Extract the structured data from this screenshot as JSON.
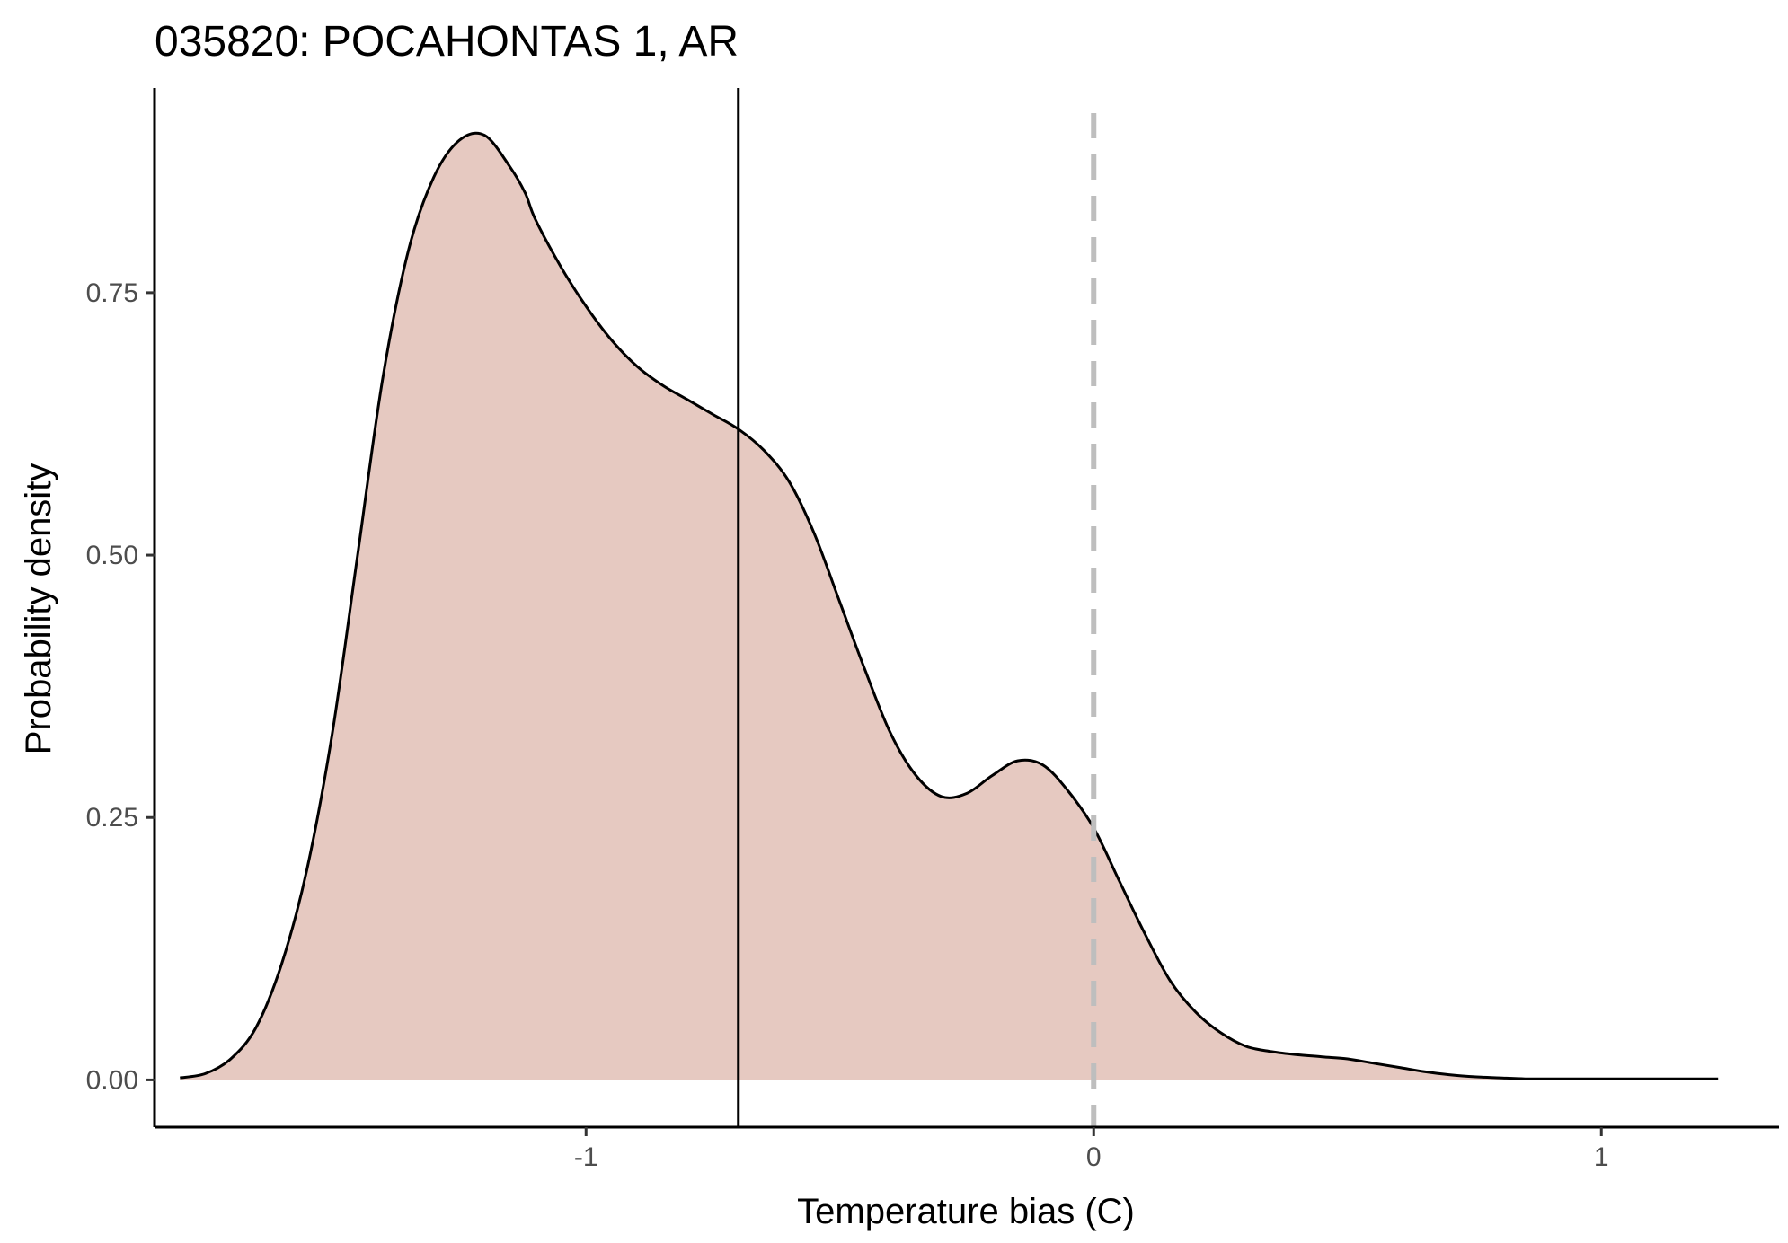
{
  "chart_data": {
    "type": "area",
    "title": "035820: POCAHONTAS 1, AR",
    "xlabel": "Temperature bias (C)",
    "ylabel": "Probability density",
    "xlim": [
      -1.85,
      1.35
    ],
    "ylim": [
      -0.045,
      0.945
    ],
    "x_ticks": [
      {
        "value": -1,
        "label": "-1"
      },
      {
        "value": 0,
        "label": "0"
      },
      {
        "value": 1,
        "label": "1"
      }
    ],
    "y_ticks": [
      {
        "value": 0.0,
        "label": "0.00"
      },
      {
        "value": 0.25,
        "label": "0.25"
      },
      {
        "value": 0.5,
        "label": "0.50"
      },
      {
        "value": 0.75,
        "label": "0.75"
      }
    ],
    "grid": false,
    "fill_color": "#e6c9c1",
    "line_color": "#000000",
    "series": [
      {
        "x": [
          -1.8,
          -1.75,
          -1.7,
          -1.65,
          -1.6,
          -1.55,
          -1.5,
          -1.45,
          -1.4,
          -1.35,
          -1.3,
          -1.25,
          -1.2,
          -1.15,
          -1.12,
          -1.1,
          -1.05,
          -1.0,
          -0.95,
          -0.9,
          -0.85,
          -0.8,
          -0.75,
          -0.7,
          -0.65,
          -0.6,
          -0.55,
          -0.5,
          -0.45,
          -0.4,
          -0.35,
          -0.3,
          -0.25,
          -0.2,
          -0.15,
          -0.1,
          -0.05,
          0.0,
          0.05,
          0.1,
          0.15,
          0.2,
          0.25,
          0.3,
          0.35,
          0.4,
          0.45,
          0.5,
          0.55,
          0.6,
          0.65,
          0.7,
          0.75,
          0.8,
          0.85,
          0.9,
          0.95,
          1.0,
          1.05,
          1.1,
          1.15,
          1.2,
          1.23
        ],
        "y": [
          0.002,
          0.006,
          0.02,
          0.05,
          0.11,
          0.2,
          0.33,
          0.5,
          0.67,
          0.79,
          0.86,
          0.895,
          0.9,
          0.87,
          0.845,
          0.82,
          0.775,
          0.737,
          0.705,
          0.68,
          0.662,
          0.648,
          0.634,
          0.62,
          0.6,
          0.57,
          0.52,
          0.455,
          0.39,
          0.33,
          0.29,
          0.27,
          0.273,
          0.29,
          0.304,
          0.3,
          0.275,
          0.24,
          0.19,
          0.14,
          0.095,
          0.065,
          0.045,
          0.032,
          0.027,
          0.024,
          0.022,
          0.02,
          0.016,
          0.012,
          0.008,
          0.005,
          0.003,
          0.002,
          0.001,
          0.001,
          0.001,
          0.001,
          0.001,
          0.001,
          0.001,
          0.001,
          0.001
        ]
      }
    ],
    "reference_lines": [
      {
        "x": -0.7,
        "style": "solid",
        "color": "#000000"
      },
      {
        "x": 0,
        "style": "dashed",
        "color": "#bebebe"
      }
    ]
  }
}
